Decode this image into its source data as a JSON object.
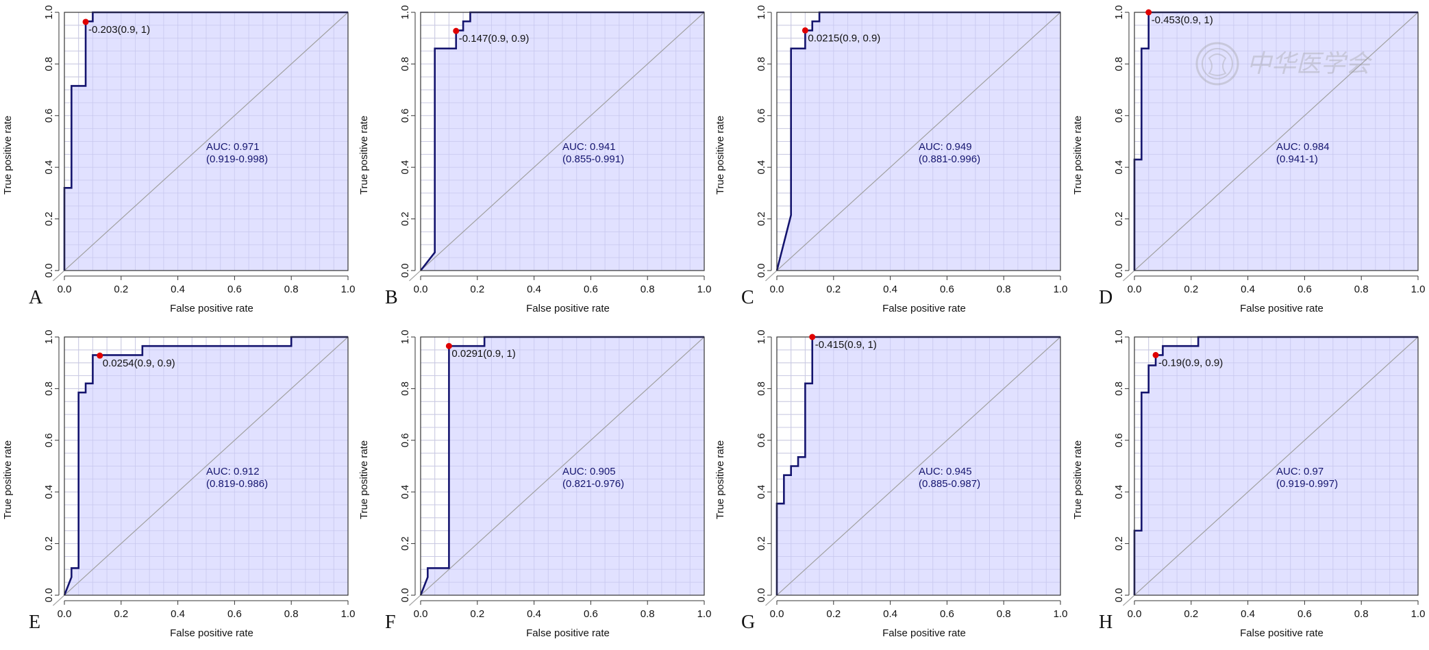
{
  "figure": {
    "watermark_text": "中华医学会"
  },
  "chart_data": [
    {
      "type": "line",
      "panel": "A",
      "xlabel": "False positive rate",
      "ylabel": "True positive rate",
      "xlim": [
        0,
        1
      ],
      "ylim": [
        0,
        1
      ],
      "xticks": [
        "0.0",
        "0.2",
        "0.4",
        "0.6",
        "0.8",
        "1.0"
      ],
      "yticks": [
        "0.0",
        "0.2",
        "0.4",
        "0.6",
        "0.8",
        "1.0"
      ],
      "grid": true,
      "fill_color": "#dcdcff",
      "line_color": "#14146e",
      "point_color": "#e00000",
      "series": [
        {
          "x": [
            0,
            0,
            0.025,
            0.025,
            0.075,
            0.075,
            0.1,
            0.1,
            1
          ],
          "y": [
            0,
            0.32,
            0.32,
            0.715,
            0.715,
            0.965,
            0.965,
            1,
            1
          ]
        }
      ],
      "cutoff": {
        "x": 0.075,
        "y": 0.963,
        "label": "-0.203(0.9, 1)"
      },
      "auc": {
        "value": "AUC: 0.971",
        "ci": "(0.919-0.998)",
        "x": 0.5,
        "y": 0.44
      }
    },
    {
      "type": "line",
      "panel": "B",
      "xlabel": "False positive rate",
      "ylabel": "True positive rate",
      "xlim": [
        0,
        1
      ],
      "ylim": [
        0,
        1
      ],
      "xticks": [
        "0.0",
        "0.2",
        "0.4",
        "0.6",
        "0.8",
        "1.0"
      ],
      "yticks": [
        "0.0",
        "0.2",
        "0.4",
        "0.6",
        "0.8",
        "1.0"
      ],
      "grid": true,
      "fill_color": "#dcdcff",
      "line_color": "#14146e",
      "point_color": "#e00000",
      "series": [
        {
          "x": [
            0,
            0.05,
            0.05,
            0.125,
            0.125,
            0.15,
            0.15,
            0.175,
            0.175,
            1
          ],
          "y": [
            0,
            0.07,
            0.86,
            0.86,
            0.93,
            0.93,
            0.965,
            0.965,
            1,
            1
          ]
        }
      ],
      "cutoff": {
        "x": 0.125,
        "y": 0.928,
        "label": "-0.147(0.9, 0.9)"
      },
      "auc": {
        "value": "AUC: 0.941",
        "ci": "(0.855-0.991)",
        "x": 0.5,
        "y": 0.44
      }
    },
    {
      "type": "line",
      "panel": "C",
      "xlabel": "False positive rate",
      "ylabel": "True positive rate",
      "xlim": [
        0,
        1
      ],
      "ylim": [
        0,
        1
      ],
      "xticks": [
        "0.0",
        "0.2",
        "0.4",
        "0.6",
        "0.8",
        "1.0"
      ],
      "yticks": [
        "0.0",
        "0.2",
        "0.4",
        "0.6",
        "0.8",
        "1.0"
      ],
      "grid": true,
      "fill_color": "#dcdcff",
      "line_color": "#14146e",
      "point_color": "#e00000",
      "series": [
        {
          "x": [
            0,
            0.05,
            0.05,
            0.1,
            0.1,
            0.125,
            0.125,
            0.15,
            0.15,
            1
          ],
          "y": [
            0,
            0.215,
            0.86,
            0.86,
            0.93,
            0.93,
            0.965,
            0.965,
            1,
            1
          ]
        }
      ],
      "cutoff": {
        "x": 0.1,
        "y": 0.93,
        "label": "0.0215(0.9, 0.9)"
      },
      "auc": {
        "value": "AUC: 0.949",
        "ci": "(0.881-0.996)",
        "x": 0.5,
        "y": 0.44
      }
    },
    {
      "type": "line",
      "panel": "D",
      "xlabel": "False positive rate",
      "ylabel": "True positive rate",
      "xlim": [
        0,
        1
      ],
      "ylim": [
        0,
        1
      ],
      "xticks": [
        "0.0",
        "0.2",
        "0.4",
        "0.6",
        "0.8",
        "1.0"
      ],
      "yticks": [
        "0.0",
        "0.2",
        "0.4",
        "0.6",
        "0.8",
        "1.0"
      ],
      "grid": true,
      "fill_color": "#dcdcff",
      "line_color": "#14146e",
      "point_color": "#e00000",
      "series": [
        {
          "x": [
            0,
            0,
            0.025,
            0.025,
            0.05,
            0.05,
            1
          ],
          "y": [
            0,
            0.43,
            0.43,
            0.86,
            0.86,
            1,
            1
          ]
        }
      ],
      "cutoff": {
        "x": 0.05,
        "y": 1,
        "label": "-0.453(0.9, 1)"
      },
      "auc": {
        "value": "AUC: 0.984",
        "ci": "(0.941-1)",
        "x": 0.5,
        "y": 0.44
      }
    },
    {
      "type": "line",
      "panel": "E",
      "xlabel": "False positive rate",
      "ylabel": "True positive rate",
      "xlim": [
        0,
        1
      ],
      "ylim": [
        0,
        1
      ],
      "xticks": [
        "0.0",
        "0.2",
        "0.4",
        "0.6",
        "0.8",
        "1.0"
      ],
      "yticks": [
        "0.0",
        "0.2",
        "0.4",
        "0.6",
        "0.8",
        "1.0"
      ],
      "grid": true,
      "fill_color": "#dcdcff",
      "line_color": "#14146e",
      "point_color": "#e00000",
      "series": [
        {
          "x": [
            0,
            0.025,
            0.025,
            0.05,
            0.05,
            0.075,
            0.075,
            0.1,
            0.1,
            0.275,
            0.275,
            0.8,
            0.8,
            1
          ],
          "y": [
            0,
            0.07,
            0.105,
            0.105,
            0.785,
            0.785,
            0.82,
            0.82,
            0.93,
            0.93,
            0.965,
            0.965,
            1,
            1
          ]
        }
      ],
      "cutoff": {
        "x": 0.125,
        "y": 0.928,
        "label": "0.0254(0.9, 0.9)"
      },
      "auc": {
        "value": "AUC: 0.912",
        "ci": "(0.819-0.986)",
        "x": 0.5,
        "y": 0.44
      }
    },
    {
      "type": "line",
      "panel": "F",
      "xlabel": "False positive rate",
      "ylabel": "True positive rate",
      "xlim": [
        0,
        1
      ],
      "ylim": [
        0,
        1
      ],
      "xticks": [
        "0.0",
        "0.2",
        "0.4",
        "0.6",
        "0.8",
        "1.0"
      ],
      "yticks": [
        "0.0",
        "0.2",
        "0.4",
        "0.6",
        "0.8",
        "1.0"
      ],
      "grid": true,
      "fill_color": "#dcdcff",
      "line_color": "#14146e",
      "point_color": "#e00000",
      "series": [
        {
          "x": [
            0,
            0.025,
            0.025,
            0.1,
            0.1,
            0.225,
            0.225,
            1
          ],
          "y": [
            0,
            0.07,
            0.105,
            0.105,
            0.965,
            0.965,
            1,
            1
          ]
        }
      ],
      "cutoff": {
        "x": 0.1,
        "y": 0.965,
        "label": "0.0291(0.9, 1)"
      },
      "auc": {
        "value": "AUC: 0.905",
        "ci": "(0.821-0.976)",
        "x": 0.5,
        "y": 0.44
      }
    },
    {
      "type": "line",
      "panel": "G",
      "xlabel": "False positive rate",
      "ylabel": "True positive rate",
      "xlim": [
        0,
        1
      ],
      "ylim": [
        0,
        1
      ],
      "xticks": [
        "0.0",
        "0.2",
        "0.4",
        "0.6",
        "0.8",
        "1.0"
      ],
      "yticks": [
        "0.0",
        "0.2",
        "0.4",
        "0.6",
        "0.8",
        "1.0"
      ],
      "grid": true,
      "fill_color": "#dcdcff",
      "line_color": "#14146e",
      "point_color": "#e00000",
      "series": [
        {
          "x": [
            0,
            0,
            0.025,
            0.025,
            0.05,
            0.05,
            0.075,
            0.075,
            0.1,
            0.1,
            0.125,
            0.125,
            1
          ],
          "y": [
            0,
            0.355,
            0.355,
            0.465,
            0.465,
            0.5,
            0.5,
            0.535,
            0.535,
            0.82,
            0.82,
            1,
            1
          ]
        }
      ],
      "cutoff": {
        "x": 0.125,
        "y": 1,
        "label": "-0.415(0.9, 1)"
      },
      "auc": {
        "value": "AUC: 0.945",
        "ci": "(0.885-0.987)",
        "x": 0.5,
        "y": 0.44
      }
    },
    {
      "type": "line",
      "panel": "H",
      "xlabel": "False positive rate",
      "ylabel": "True positive rate",
      "xlim": [
        0,
        1
      ],
      "ylim": [
        0,
        1
      ],
      "xticks": [
        "0.0",
        "0.2",
        "0.4",
        "0.6",
        "0.8",
        "1.0"
      ],
      "yticks": [
        "0.0",
        "0.2",
        "0.4",
        "0.6",
        "0.8",
        "1.0"
      ],
      "grid": true,
      "fill_color": "#dcdcff",
      "line_color": "#14146e",
      "point_color": "#e00000",
      "series": [
        {
          "x": [
            0,
            0,
            0.025,
            0.025,
            0.05,
            0.05,
            0.075,
            0.075,
            0.1,
            0.1,
            0.225,
            0.225,
            1
          ],
          "y": [
            0,
            0.25,
            0.25,
            0.785,
            0.785,
            0.89,
            0.89,
            0.93,
            0.93,
            0.965,
            0.965,
            1,
            1
          ]
        }
      ],
      "cutoff": {
        "x": 0.075,
        "y": 0.93,
        "label": "-0.19(0.9, 0.9)"
      },
      "auc": {
        "value": "AUC: 0.97",
        "ci": "(0.919-0.997)",
        "x": 0.5,
        "y": 0.44
      }
    }
  ]
}
